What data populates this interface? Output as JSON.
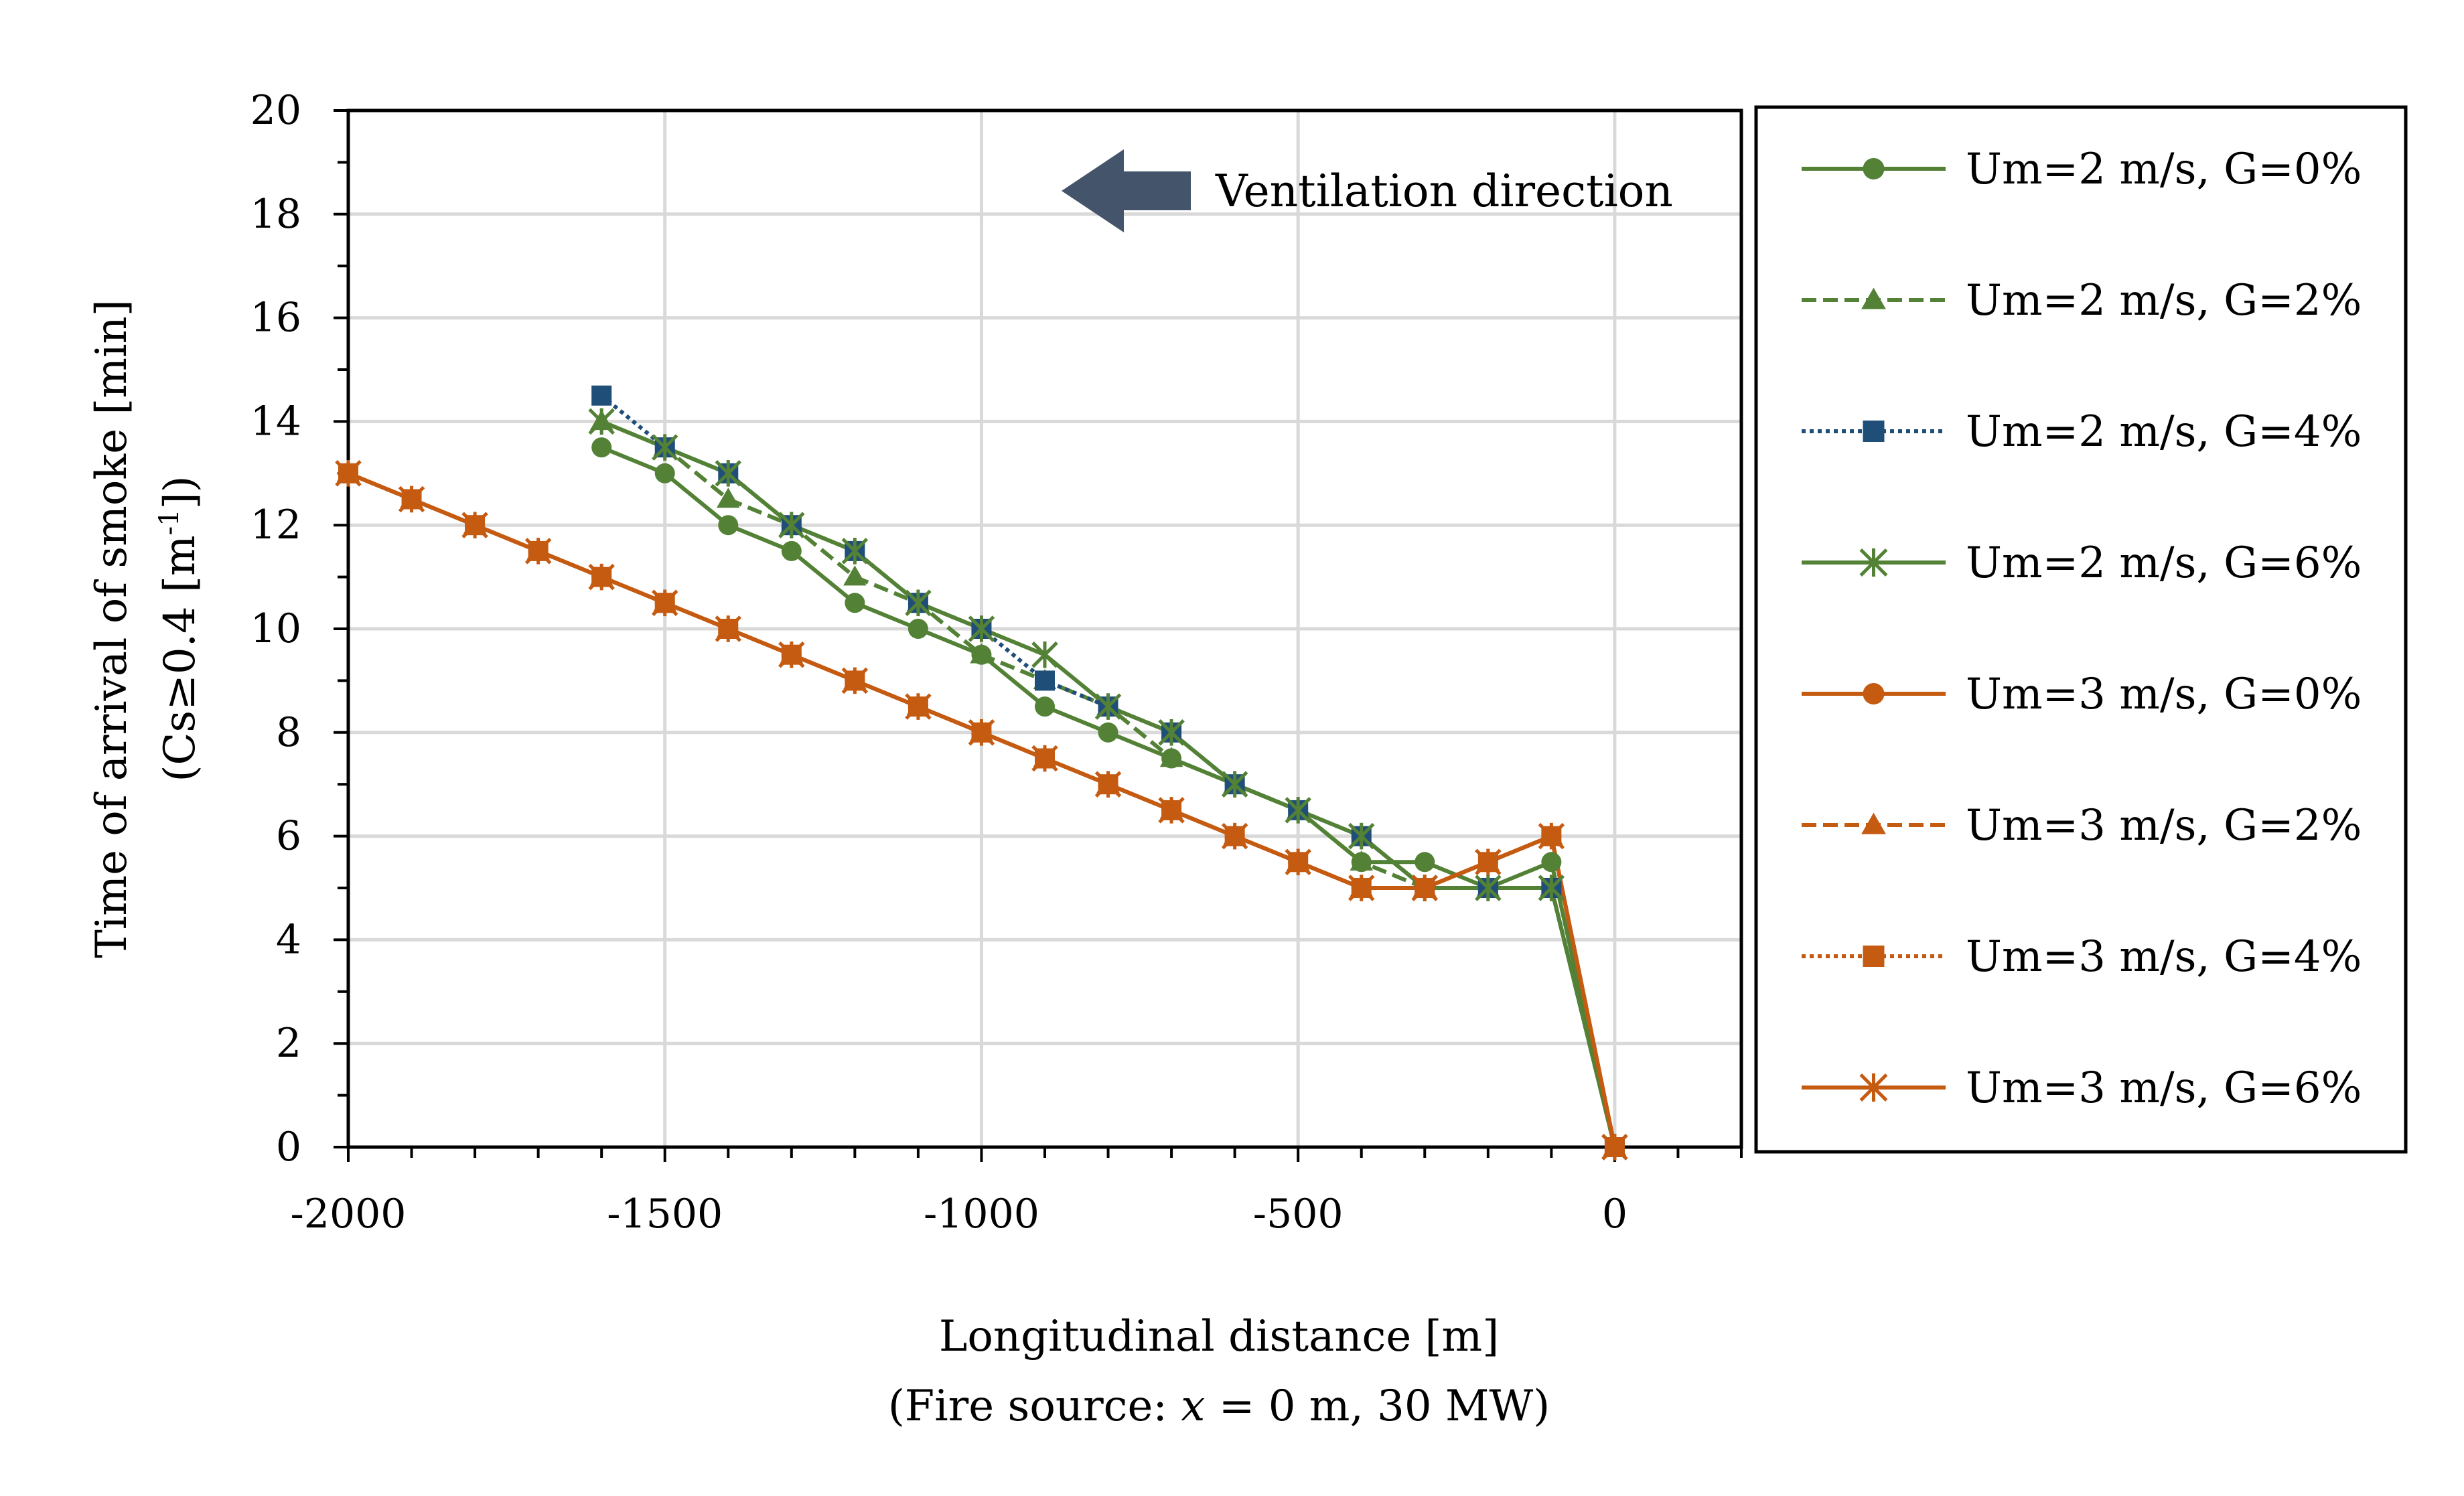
{
  "chart_data": {
    "type": "line",
    "title": "",
    "xlabel": "Longitudinal distance [m]",
    "xlabel_sub_prefix": "(Fire source: ",
    "xlabel_sub_var": "x",
    "xlabel_sub_suffix": " = 0 m, 30 MW)",
    "ylabel": "Time of arrival of smoke [min]",
    "ylabel_sub_prefix": "(Cs≥0.4 [m",
    "ylabel_sub_sup": "-1",
    "ylabel_sub_suffix": "])",
    "xlim": [
      -2000,
      200
    ],
    "ylim": [
      0,
      20
    ],
    "xticks": [
      -2000,
      -1500,
      -1000,
      -500,
      0
    ],
    "xtick_labels": [
      "-2000",
      "-1500",
      "-1000",
      "-500",
      "0"
    ],
    "yticks": [
      0,
      2,
      4,
      6,
      8,
      10,
      12,
      14,
      16,
      18,
      20
    ],
    "ytick_labels": [
      "0",
      "2",
      "4",
      "6",
      "8",
      "10",
      "12",
      "14",
      "16",
      "18",
      "20"
    ],
    "grid": true,
    "legend_position": "right",
    "annotation": "Ventilation direction",
    "annotation_arrow": "left",
    "series": [
      {
        "name": "Um=2 m/s, G=0%",
        "color": "#538135",
        "dash": "solid",
        "marker": "circle",
        "x": [
          -1600,
          -1500,
          -1400,
          -1300,
          -1200,
          -1100,
          -1000,
          -900,
          -800,
          -700,
          -600,
          -500,
          -400,
          -300,
          -200,
          -100,
          0
        ],
        "y": [
          13.5,
          13,
          12,
          11.5,
          10.5,
          10,
          9.5,
          8.5,
          8,
          7.5,
          7,
          6.5,
          5.5,
          5.5,
          5,
          5.5,
          0
        ]
      },
      {
        "name": "Um=2 m/s, G=2%",
        "color": "#538135",
        "dash": "dashed",
        "marker": "triangle",
        "x": [
          -1600,
          -1500,
          -1400,
          -1300,
          -1200,
          -1100,
          -1000,
          -900,
          -800,
          -700,
          -600,
          -500,
          -400,
          -300,
          -200,
          -100,
          0
        ],
        "y": [
          14,
          13.5,
          12.5,
          12,
          11,
          10.5,
          9.5,
          9,
          8.5,
          7.5,
          7,
          6.5,
          5.5,
          5,
          5,
          5,
          0
        ]
      },
      {
        "name": "Um=2 m/s, G=4%",
        "color": "#1F4E79",
        "dash": "dotted",
        "marker": "square",
        "x": [
          -1600,
          -1500,
          -1400,
          -1300,
          -1200,
          -1100,
          -1000,
          -900,
          -800,
          -700,
          -600,
          -500,
          -400,
          -300,
          -200,
          -100,
          0
        ],
        "y": [
          14.5,
          13.5,
          13,
          12,
          11.5,
          10.5,
          10,
          9,
          8.5,
          8,
          7,
          6.5,
          6,
          5,
          5,
          5,
          0
        ]
      },
      {
        "name": "Um=2 m/s, G=6%",
        "color": "#538135",
        "dash": "solid",
        "marker": "star",
        "x": [
          -1600,
          -1500,
          -1400,
          -1300,
          -1200,
          -1100,
          -1000,
          -900,
          -800,
          -700,
          -600,
          -500,
          -400,
          -300,
          -200,
          -100,
          0
        ],
        "y": [
          14,
          13.5,
          13,
          12,
          11.5,
          10.5,
          10,
          9.5,
          8.5,
          8,
          7,
          6.5,
          6,
          5,
          5,
          5,
          0
        ]
      },
      {
        "name": "Um=3 m/s, G=0%",
        "color": "#C55A11",
        "dash": "solid",
        "marker": "circle",
        "x": [
          -2000,
          -1900,
          -1800,
          -1700,
          -1600,
          -1500,
          -1400,
          -1300,
          -1200,
          -1100,
          -1000,
          -900,
          -800,
          -700,
          -600,
          -500,
          -400,
          -300,
          -200,
          -100,
          0
        ],
        "y": [
          13,
          12.5,
          12,
          11.5,
          11,
          10.5,
          10,
          9.5,
          9,
          8.5,
          8,
          7.5,
          7,
          6.5,
          6,
          5.5,
          5,
          5,
          5.5,
          6,
          0
        ]
      },
      {
        "name": "Um=3 m/s, G=2%",
        "color": "#C55A11",
        "dash": "dashed",
        "marker": "triangle",
        "x": [
          -2000,
          -1900,
          -1800,
          -1700,
          -1600,
          -1500,
          -1400,
          -1300,
          -1200,
          -1100,
          -1000,
          -900,
          -800,
          -700,
          -600,
          -500,
          -400,
          -300,
          -200,
          -100,
          0
        ],
        "y": [
          13,
          12.5,
          12,
          11.5,
          11,
          10.5,
          10,
          9.5,
          9,
          8.5,
          8,
          7.5,
          7,
          6.5,
          6,
          5.5,
          5,
          5,
          5.5,
          6,
          0
        ]
      },
      {
        "name": "Um=3 m/s, G=4%",
        "color": "#C55A11",
        "dash": "dotted",
        "marker": "square",
        "x": [
          -2000,
          -1900,
          -1800,
          -1700,
          -1600,
          -1500,
          -1400,
          -1300,
          -1200,
          -1100,
          -1000,
          -900,
          -800,
          -700,
          -600,
          -500,
          -400,
          -300,
          -200,
          -100,
          0
        ],
        "y": [
          13,
          12.5,
          12,
          11.5,
          11,
          10.5,
          10,
          9.5,
          9,
          8.5,
          8,
          7.5,
          7,
          6.5,
          6,
          5.5,
          5,
          5,
          5.5,
          6,
          0
        ]
      },
      {
        "name": "Um=3 m/s, G=6%",
        "color": "#C55A11",
        "dash": "solid",
        "marker": "star",
        "x": [
          -2000,
          -1900,
          -1800,
          -1700,
          -1600,
          -1500,
          -1400,
          -1300,
          -1200,
          -1100,
          -1000,
          -900,
          -800,
          -700,
          -600,
          -500,
          -400,
          -300,
          -200,
          -100,
          0
        ],
        "y": [
          13,
          12.5,
          12,
          11.5,
          11,
          10.5,
          10,
          9.5,
          9,
          8.5,
          8,
          7.5,
          7,
          6.5,
          6,
          5.5,
          5,
          5,
          5.5,
          6,
          0
        ]
      }
    ]
  }
}
